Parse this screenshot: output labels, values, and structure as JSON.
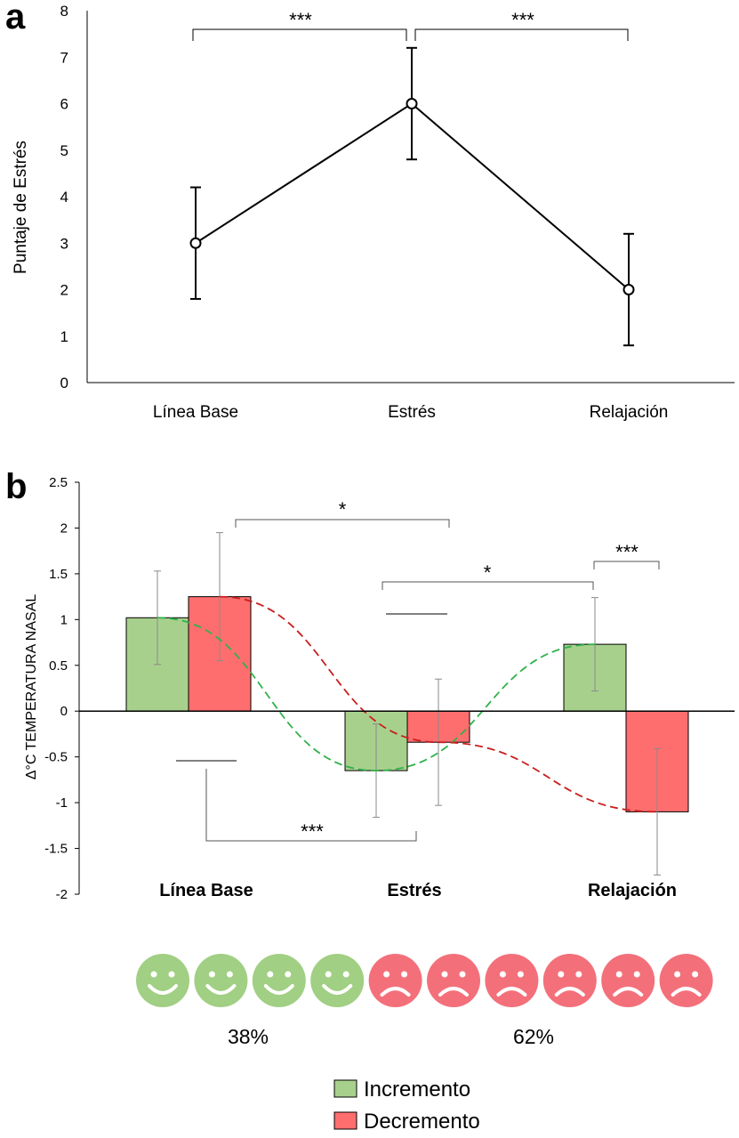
{
  "colors": {
    "green_face": "#a1cf83",
    "red_face": "#f3707a",
    "bar_green": "#a8d08d",
    "bar_red": "#ff6e6e",
    "dash_green": "#2fb24a",
    "dash_red": "#c81e1e"
  },
  "chart_data": [
    {
      "panel": "a",
      "type": "line",
      "categories": [
        "Línea Base",
        "Estrés",
        "Relajación"
      ],
      "values": [
        3,
        6,
        2
      ],
      "error": [
        1.2,
        1.2,
        1.2
      ],
      "ylabel": "Puntaje de Estrés",
      "ylim": [
        0,
        8
      ],
      "yticks": [
        "0",
        "1",
        "2",
        "3",
        "4",
        "5",
        "6",
        "7",
        "8"
      ],
      "significance": [
        {
          "from": 0,
          "to": 1,
          "label": "***"
        },
        {
          "from": 1,
          "to": 2,
          "label": "***"
        }
      ]
    },
    {
      "panel": "b",
      "type": "bar",
      "categories": [
        "Línea Base",
        "Estrés",
        "Relajación"
      ],
      "ylabel": "Δ°C TEMPERATURA NASAL",
      "ylim": [
        -2,
        2.5
      ],
      "yticks": [
        "-2",
        "-1.5",
        "-1",
        "-0.5",
        "0",
        "0.5",
        "1",
        "1.5",
        "2",
        "2.5"
      ],
      "series": [
        {
          "name": "Incremento",
          "values": [
            1.02,
            -0.65,
            0.73
          ],
          "error": [
            0.51,
            0.51,
            0.51
          ]
        },
        {
          "name": "Decremento",
          "values": [
            1.25,
            -0.34,
            -1.1
          ],
          "error": [
            0.7,
            0.69,
            0.69
          ]
        }
      ],
      "significance": [
        "*",
        "*",
        "***",
        "***"
      ]
    }
  ],
  "faces": {
    "happy_count": 4,
    "sad_count": 6,
    "happy_pct": "38%",
    "sad_pct": "62%"
  },
  "legend": [
    {
      "label": "Incremento",
      "color": "#a8d08d"
    },
    {
      "label": "Decremento",
      "color": "#ff6e6e"
    }
  ],
  "panel_letters": [
    "a",
    "b"
  ]
}
